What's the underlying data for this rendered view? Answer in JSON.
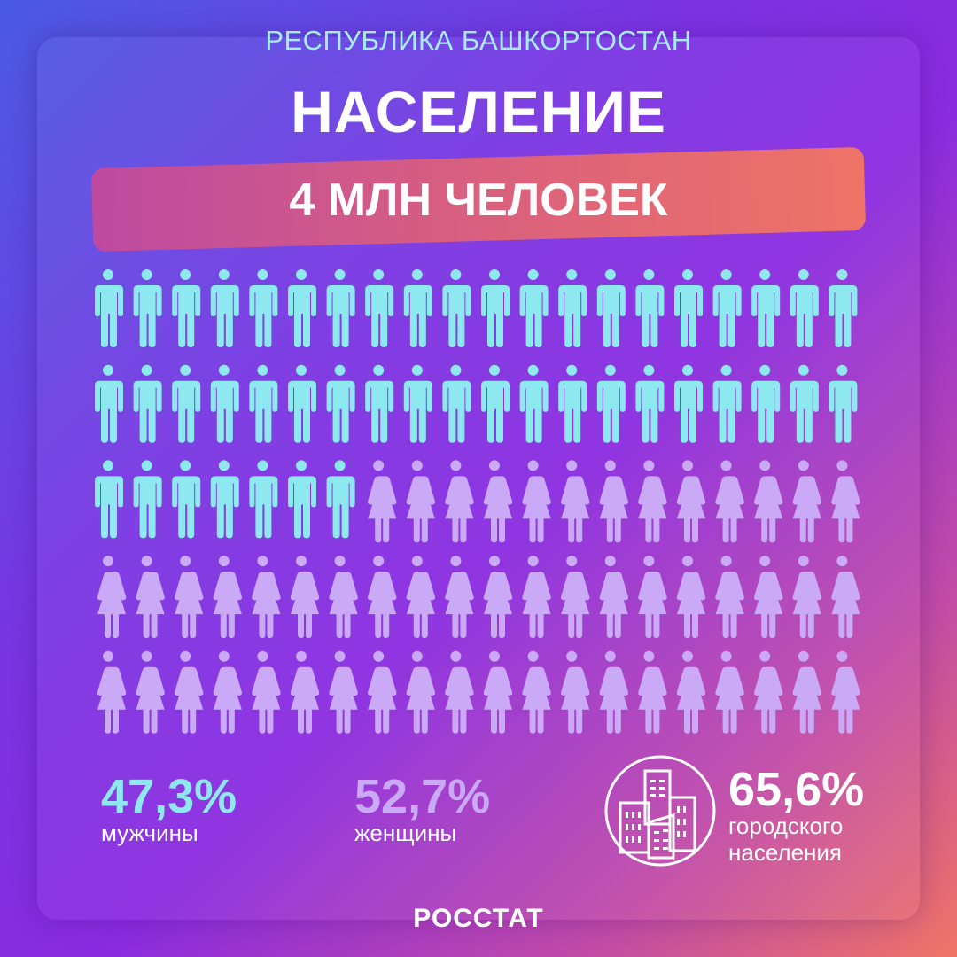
{
  "header": {
    "region": "РЕСПУБЛИКА БАШКОРТОСТАН",
    "title": "НАСЕЛЕНИЕ",
    "population": "4 МЛН ЧЕЛОВЕК"
  },
  "chart_data": {
    "type": "pictogram",
    "total_icons": 100,
    "columns": 20,
    "rows": 5,
    "series": [
      {
        "name": "мужчины",
        "icons": 47,
        "value": 47.3,
        "color": "#8ee8f0",
        "icon": "male-figure"
      },
      {
        "name": "женщины",
        "icons": 53,
        "value": 52.7,
        "color": "#caa9f6",
        "icon": "female-figure"
      }
    ]
  },
  "stats": {
    "male": {
      "value": "47,3%",
      "label": "мужчины",
      "color": "#8ee8f0"
    },
    "female": {
      "value": "52,7%",
      "label": "женщины",
      "color": "#caa9f6"
    },
    "urban": {
      "value": "65,6%",
      "label_line1": "городского",
      "label_line2": "населения",
      "icon": "city-buildings-icon"
    }
  },
  "footer": {
    "brand": "РОССТАТ"
  },
  "colors": {
    "gradient_start": "#4a5be2",
    "gradient_mid": "#8a2be0",
    "gradient_end": "#f07466"
  }
}
